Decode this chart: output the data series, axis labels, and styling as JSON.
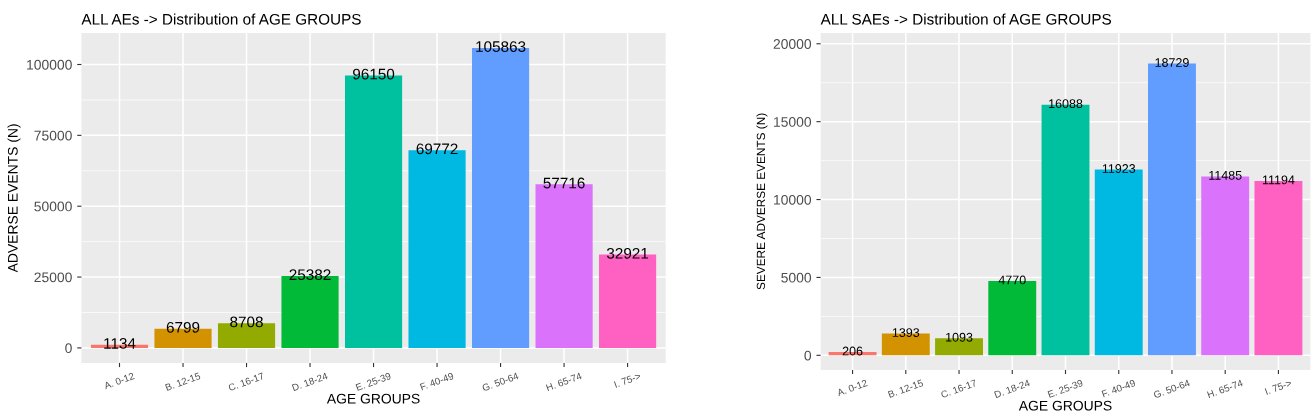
{
  "chart_data": [
    {
      "type": "bar",
      "title": "ALL AEs -> Distribution of AGE GROUPS",
      "xlabel": "AGE GROUPS",
      "ylabel": "ADVERSE EVENTS (N)",
      "categories": [
        "A. 0-12",
        "B. 12-15",
        "C. 16-17",
        "D. 18-24",
        "E. 25-39",
        "F. 40-49",
        "G. 50-64",
        "H. 65-74",
        "I. 75->"
      ],
      "values": [
        1134,
        6799,
        8708,
        25382,
        96150,
        69772,
        105863,
        57716,
        32921
      ],
      "colors": [
        "#f8766d",
        "#d39200",
        "#93aa00",
        "#00ba38",
        "#00c19f",
        "#00b9e3",
        "#619cff",
        "#db72fb",
        "#ff61c3"
      ],
      "ylim": [
        -5293,
        111156
      ],
      "yticks": [
        0,
        25000,
        50000,
        75000,
        100000
      ],
      "grid": true,
      "data_labels": true,
      "legend": false
    },
    {
      "type": "bar",
      "title": "ALL SAEs -> Distribution of AGE GROUPS",
      "xlabel": "AGE GROUPS",
      "ylabel": "SEVERE ADVERSE EVENTS (N)",
      "categories": [
        "A. 0-12",
        "B. 12-15",
        "C. 16-17",
        "D. 18-24",
        "E. 25-39",
        "F. 40-49",
        "G. 50-64",
        "H. 65-74",
        "I. 75->"
      ],
      "values": [
        206,
        1393,
        1093,
        4770,
        16088,
        11923,
        18729,
        11485,
        11194
      ],
      "colors": [
        "#f8766d",
        "#d39200",
        "#93aa00",
        "#00ba38",
        "#00c19f",
        "#00b9e3",
        "#619cff",
        "#db72fb",
        "#ff61c3"
      ],
      "ylim": [
        -936,
        20700
      ],
      "yticks": [
        0,
        5000,
        10000,
        15000,
        20000
      ],
      "grid": true,
      "data_labels": true,
      "legend": false
    }
  ]
}
